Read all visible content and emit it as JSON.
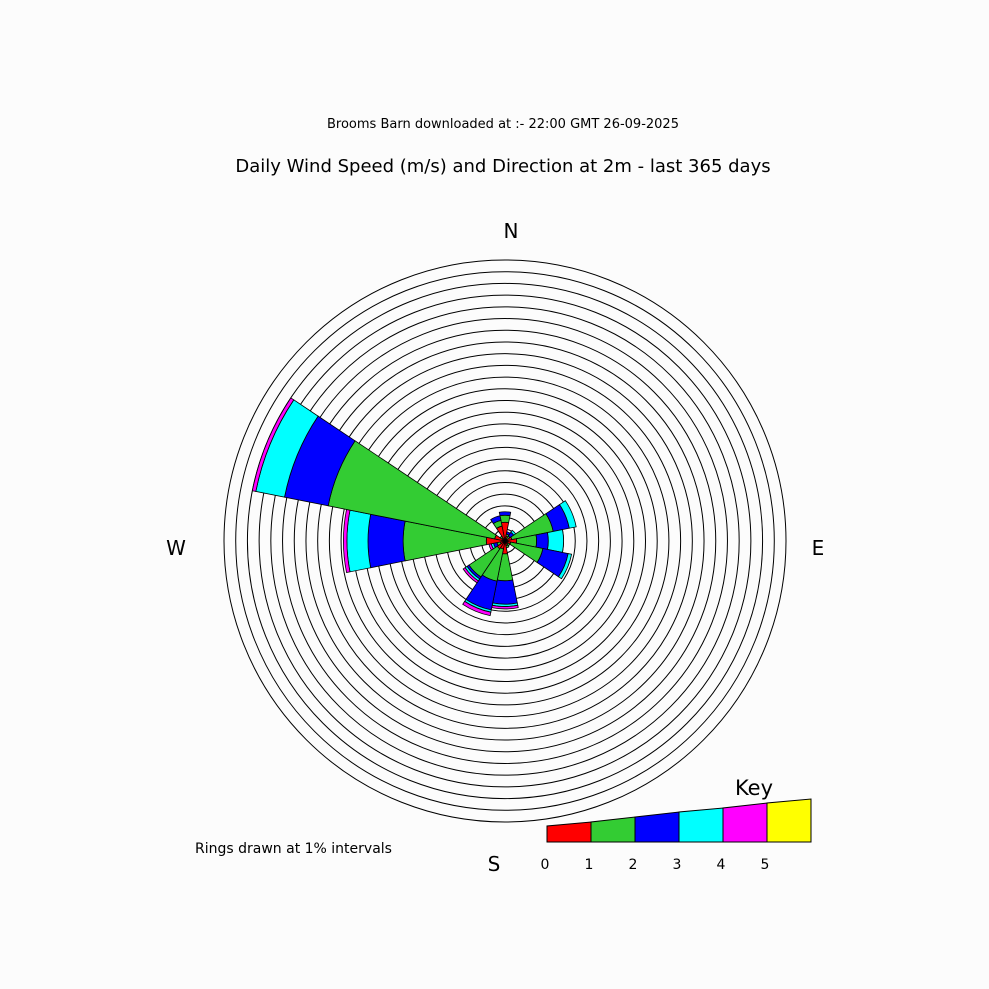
{
  "chart_data": {
    "type": "wind-rose",
    "subtitle": "Brooms Barn downloaded at :- 22:00 GMT 26-09-2025",
    "title": "Daily Wind Speed (m/s) and Direction at 2m - last 365 days",
    "compass": {
      "n": "N",
      "e": "E",
      "s": "S",
      "w": "W"
    },
    "rings_note": "Rings drawn at 1% intervals",
    "ring_interval_percent": 1,
    "ring_count": 24,
    "key": {
      "title": "Key",
      "ticks": [
        "0",
        "1",
        "2",
        "3",
        "4",
        "5"
      ],
      "colors": [
        "#ff0000",
        "#33cc33",
        "#0000ff",
        "#00ffff",
        "#ff00ff",
        "#ffff00"
      ]
    },
    "sector_width_deg": 22.5,
    "speed_classes": [
      "0-1",
      "1-2",
      "2-3",
      "3-4",
      "4-5",
      "5+"
    ],
    "sectors": [
      {
        "direction": "N",
        "bearing": 0,
        "cumulative_percent": [
          1.6,
          2.2,
          2.5
        ]
      },
      {
        "direction": "NNE",
        "bearing": 22.5,
        "cumulative_percent": [
          0.4,
          0.6,
          0.8
        ]
      },
      {
        "direction": "NE",
        "bearing": 45,
        "cumulative_percent": [
          0.2,
          0.5,
          0.9,
          1.1
        ]
      },
      {
        "direction": "ENE",
        "bearing": 67.5,
        "cumulative_percent": [
          0.6,
          4.2,
          5.6,
          6.2
        ]
      },
      {
        "direction": "E",
        "bearing": 90,
        "cumulative_percent": [
          1.0,
          2.7,
          3.7,
          5.0
        ]
      },
      {
        "direction": "ESE",
        "bearing": 112.5,
        "cumulative_percent": [
          0.5,
          3.3,
          5.5,
          5.8
        ]
      },
      {
        "direction": "SE",
        "bearing": 135,
        "cumulative_percent": [
          0.3,
          0.5
        ]
      },
      {
        "direction": "SSE",
        "bearing": 157.5,
        "cumulative_percent": [
          0.4,
          0.6
        ]
      },
      {
        "direction": "S",
        "bearing": 180,
        "cumulative_percent": [
          1.1,
          3.4,
          5.4,
          5.6,
          5.8
        ]
      },
      {
        "direction": "SSW",
        "bearing": 202.5,
        "cumulative_percent": [
          0.7,
          3.5,
          6.0,
          6.2,
          6.5
        ]
      },
      {
        "direction": "SW",
        "bearing": 225,
        "cumulative_percent": [
          0.8,
          3.7,
          3.9,
          4.1,
          4.3
        ]
      },
      {
        "direction": "WSW",
        "bearing": 247.5,
        "cumulative_percent": [
          0.4,
          0.7,
          1.0,
          1.2,
          1.4
        ]
      },
      {
        "direction": "W",
        "bearing": 270,
        "cumulative_percent": [
          1.6,
          8.7,
          11.7,
          13.5,
          13.8
        ]
      },
      {
        "direction": "WNW",
        "bearing": 292.5,
        "cumulative_percent": [
          0.9,
          15.4,
          19.2,
          21.7,
          22.0
        ]
      },
      {
        "direction": "NW",
        "bearing": 315,
        "cumulative_percent": [
          0.3,
          0.5
        ]
      },
      {
        "direction": "NNW",
        "bearing": 337.5,
        "cumulative_percent": [
          1.3,
          1.8,
          2.2
        ]
      }
    ]
  }
}
